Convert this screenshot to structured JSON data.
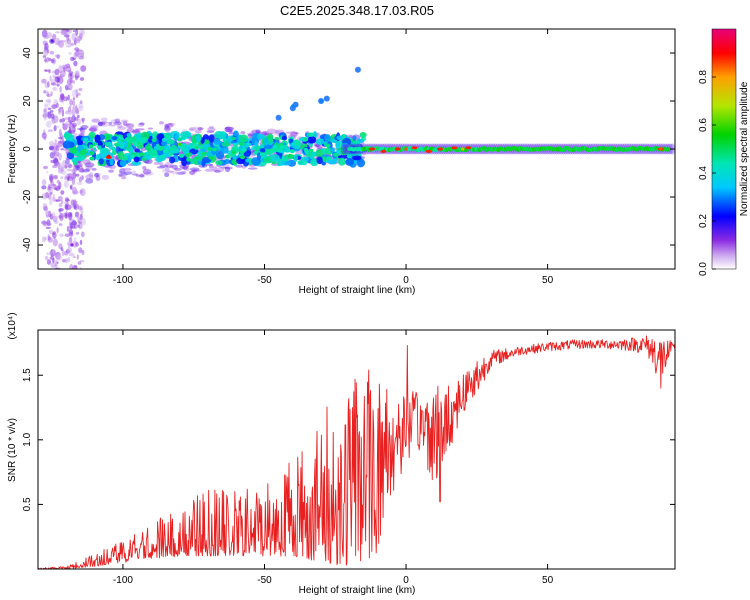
{
  "title": "C2E5.2025.348.17.03.R05",
  "chart_data": [
    {
      "type": "heatmap",
      "xlabel": "Height of straight line (km)",
      "ylabel": "Frequency (Hz)",
      "xlim": [
        -130,
        95
      ],
      "ylim": [
        -50,
        50
      ],
      "xticks": [
        -100,
        -50,
        0,
        50
      ],
      "yticks": [
        -40,
        -20,
        0,
        20,
        40
      ],
      "colorbar": {
        "label": "Normalized spectral amplitude",
        "range": [
          0,
          1
        ],
        "ticks": [
          "0.0",
          "0.2",
          "0.4",
          "0.6",
          "0.8"
        ],
        "colors": [
          "#ffffff",
          "#d2b4f0",
          "#8a2be2",
          "#0000ff",
          "#00c8ff",
          "#00e6b4",
          "#00d200",
          "#b4e600",
          "#ffa000",
          "#ff0000",
          "#e6007a"
        ]
      },
      "description_points": [
        {
          "x": -125,
          "y": 45,
          "amp": 0.15
        },
        {
          "x": -118,
          "y": -40,
          "amp": 0.12
        },
        {
          "x": -110,
          "y": 0,
          "amp": 0.45
        },
        {
          "x": -105,
          "y": -3,
          "amp": 0.9
        },
        {
          "x": -80,
          "y": 2,
          "amp": 0.6
        },
        {
          "x": -40,
          "y": 18,
          "amp": 0.3
        },
        {
          "x": -30,
          "y": 20,
          "amp": 0.3
        },
        {
          "x": 0,
          "y": 0,
          "amp": 0.85
        },
        {
          "x": 20,
          "y": 0,
          "amp": 0.75
        },
        {
          "x": 90,
          "y": 0,
          "amp": 0.85
        }
      ]
    },
    {
      "type": "line",
      "xlabel": "Height of straight line (km)",
      "ylabel": "SNR (10 * v/v)",
      "multiplier": "(x10⁴)",
      "xlim": [
        -130,
        95
      ],
      "ylim": [
        0,
        1.85
      ],
      "xticks": [
        -100,
        -50,
        0,
        50
      ],
      "yticks": [
        0.5,
        1.0,
        1.5
      ],
      "color": "#e82020",
      "envelope": [
        {
          "x": -130,
          "low": 0.0,
          "high": 0.01
        },
        {
          "x": -120,
          "low": 0.0,
          "high": 0.02
        },
        {
          "x": -110,
          "low": 0.02,
          "high": 0.12
        },
        {
          "x": -100,
          "low": 0.05,
          "high": 0.25
        },
        {
          "x": -90,
          "low": 0.08,
          "high": 0.35
        },
        {
          "x": -80,
          "low": 0.1,
          "high": 0.5
        },
        {
          "x": -70,
          "low": 0.1,
          "high": 0.65
        },
        {
          "x": -60,
          "low": 0.1,
          "high": 0.6
        },
        {
          "x": -50,
          "low": 0.1,
          "high": 0.7
        },
        {
          "x": -40,
          "low": 0.1,
          "high": 0.95
        },
        {
          "x": -30,
          "low": 0.05,
          "high": 1.2
        },
        {
          "x": -20,
          "low": 0.02,
          "high": 1.55
        },
        {
          "x": -10,
          "low": 0.1,
          "high": 1.55
        },
        {
          "x": -5,
          "low": 0.5,
          "high": 1.6
        },
        {
          "x": 0,
          "low": 0.85,
          "high": 1.35
        },
        {
          "x": 5,
          "low": 0.9,
          "high": 1.4
        },
        {
          "x": 10,
          "low": 0.65,
          "high": 1.5
        },
        {
          "x": 15,
          "low": 0.9,
          "high": 1.45
        },
        {
          "x": 20,
          "low": 1.2,
          "high": 1.55
        },
        {
          "x": 25,
          "low": 1.35,
          "high": 1.65
        },
        {
          "x": 30,
          "low": 1.55,
          "high": 1.7
        },
        {
          "x": 40,
          "low": 1.65,
          "high": 1.73
        },
        {
          "x": 50,
          "low": 1.68,
          "high": 1.76
        },
        {
          "x": 60,
          "low": 1.7,
          "high": 1.78
        },
        {
          "x": 70,
          "low": 1.7,
          "high": 1.78
        },
        {
          "x": 80,
          "low": 1.68,
          "high": 1.8
        },
        {
          "x": 85,
          "low": 1.65,
          "high": 1.82
        },
        {
          "x": 90,
          "low": 1.4,
          "high": 1.85
        },
        {
          "x": 95,
          "low": 1.7,
          "high": 1.74
        }
      ],
      "features": [
        {
          "x": 0.5,
          "y": 1.73
        },
        {
          "x": 12,
          "y": 0.52
        },
        {
          "x": 90,
          "y": 1.4
        }
      ]
    }
  ]
}
